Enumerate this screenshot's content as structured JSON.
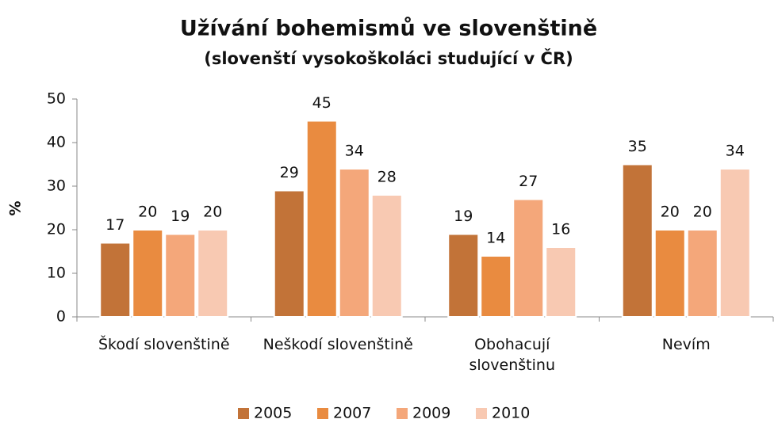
{
  "chart_data": {
    "type": "bar",
    "title": "Užívání bohemismů ve slovenštině",
    "subtitle": "(slovenští vysokoškoláci studující v ČR)",
    "y_label": "%",
    "categories": [
      "Škodí slovenštině",
      "Neškodí slovenštině",
      "Obohacují\nslovenštinu",
      "Nevím"
    ],
    "series": [
      {
        "name": "2005",
        "color": "#c27338",
        "values": [
          17,
          29,
          19,
          35
        ]
      },
      {
        "name": "2007",
        "color": "#e98b40",
        "values": [
          20,
          45,
          14,
          20
        ]
      },
      {
        "name": "2009",
        "color": "#f4a77a",
        "values": [
          19,
          34,
          27,
          20
        ]
      },
      {
        "name": "2010",
        "color": "#f8c9b2",
        "values": [
          20,
          28,
          16,
          34
        ]
      }
    ],
    "ylim": [
      0,
      50
    ],
    "yticks": [
      0,
      10,
      20,
      30,
      40,
      50
    ],
    "grid": false,
    "legend": "bottom"
  }
}
